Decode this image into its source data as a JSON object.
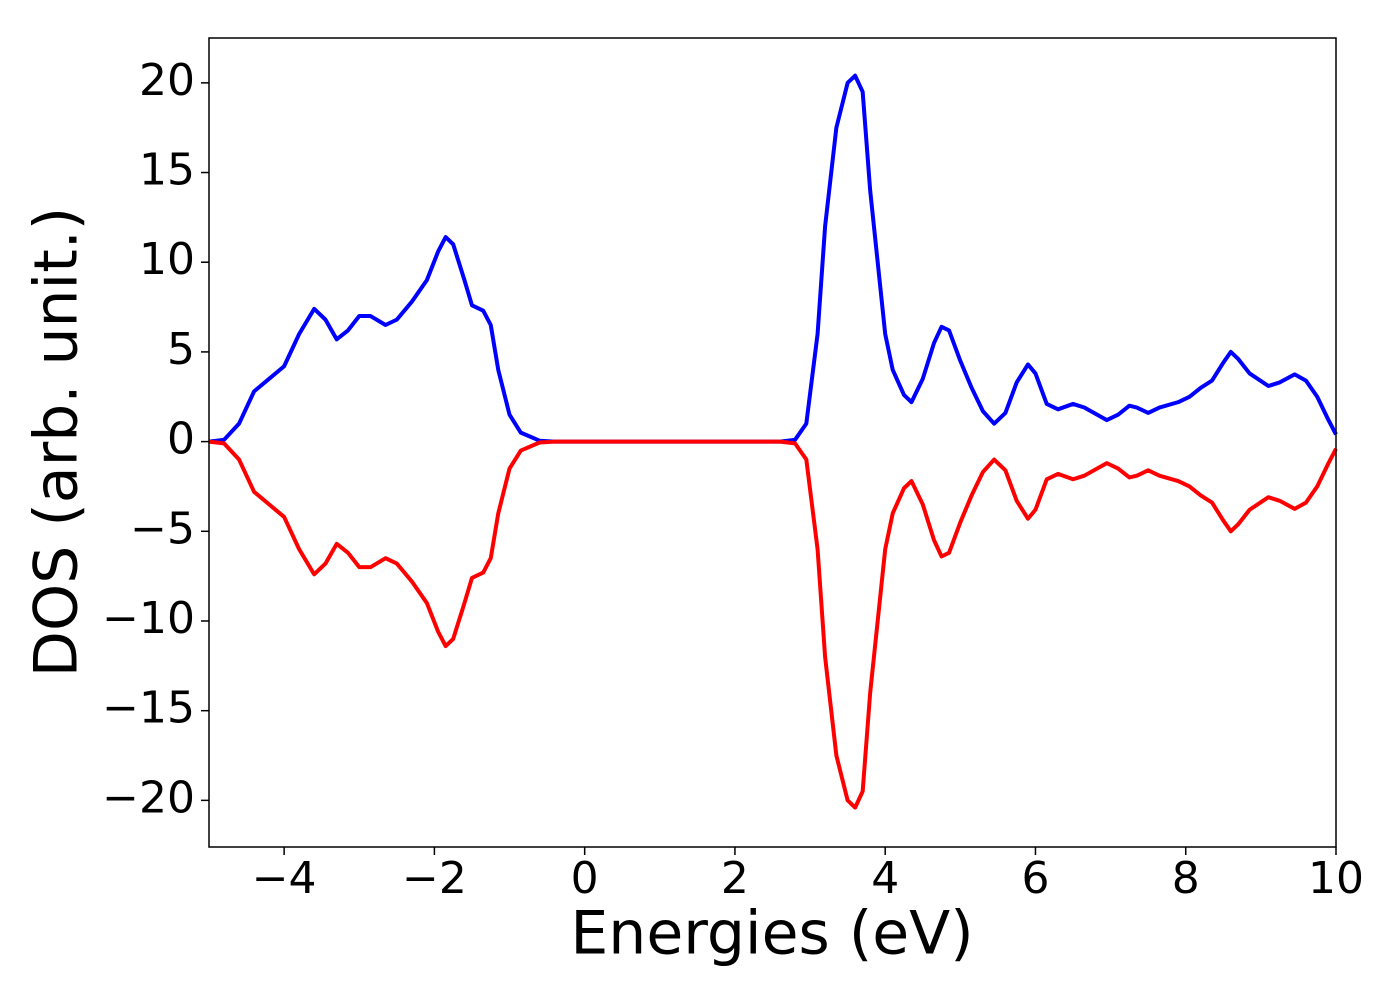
{
  "chart_data": {
    "type": "line",
    "xlabel": "Energies (eV)",
    "ylabel": "DOS (arb. unit.)",
    "x": [
      -5,
      -4.8,
      -4.6,
      -4.4,
      -4.2,
      -4.0,
      -3.8,
      -3.6,
      -3.45,
      -3.3,
      -3.15,
      -3.0,
      -2.85,
      -2.65,
      -2.5,
      -2.3,
      -2.1,
      -1.95,
      -1.85,
      -1.75,
      -1.6,
      -1.5,
      -1.35,
      -1.25,
      -1.15,
      -1.0,
      -0.85,
      -0.6,
      -0.4,
      2.6,
      2.8,
      2.95,
      3.1,
      3.2,
      3.35,
      3.5,
      3.6,
      3.7,
      3.8,
      3.9,
      4.0,
      4.1,
      4.25,
      4.35,
      4.5,
      4.65,
      4.75,
      4.85,
      5.0,
      5.15,
      5.3,
      5.45,
      5.6,
      5.75,
      5.9,
      6.0,
      6.15,
      6.3,
      6.5,
      6.65,
      6.95,
      7.1,
      7.25,
      7.35,
      7.5,
      7.65,
      7.9,
      8.05,
      8.2,
      8.35,
      8.5,
      8.6,
      8.7,
      8.85,
      9.1,
      9.25,
      9.45,
      9.6,
      9.75,
      9.9,
      10.0
    ],
    "series": [
      {
        "color": "#0000ff",
        "values": [
          0,
          0.1,
          1,
          2.8,
          3.5,
          4.2,
          6,
          7.4,
          6.8,
          5.7,
          6.2,
          7.0,
          7.0,
          6.5,
          6.8,
          7.8,
          9.0,
          10.6,
          11.4,
          11,
          9,
          7.6,
          7.3,
          6.5,
          4,
          1.5,
          0.5,
          0.05,
          0,
          0,
          0.1,
          1,
          6,
          12,
          17.5,
          20,
          20.4,
          19.5,
          14,
          10,
          6,
          4,
          2.6,
          2.2,
          3.5,
          5.5,
          6.4,
          6.2,
          4.5,
          3,
          1.7,
          1,
          1.6,
          3.3,
          4.3,
          3.8,
          2.1,
          1.8,
          2.1,
          1.9,
          1.2,
          1.5,
          2.0,
          1.9,
          1.6,
          1.9,
          2.2,
          2.5,
          3.0,
          3.4,
          4.4,
          5.0,
          4.6,
          3.8,
          3.1,
          3.3,
          3.75,
          3.4,
          2.5,
          1.2,
          0.4
        ]
      },
      {
        "color": "#ff0000",
        "values": [
          0,
          -0.1,
          -1,
          -2.8,
          -3.5,
          -4.2,
          -6,
          -7.4,
          -6.8,
          -5.7,
          -6.2,
          -7.0,
          -7.0,
          -6.5,
          -6.8,
          -7.8,
          -9.0,
          -10.6,
          -11.4,
          -11,
          -9,
          -7.6,
          -7.3,
          -6.5,
          -4,
          -1.5,
          -0.5,
          -0.05,
          0,
          0,
          -0.1,
          -1,
          -6,
          -12,
          -17.5,
          -20,
          -20.4,
          -19.5,
          -14,
          -10,
          -6,
          -4,
          -2.6,
          -2.2,
          -3.5,
          -5.5,
          -6.4,
          -6.2,
          -4.5,
          -3,
          -1.7,
          -1,
          -1.6,
          -3.3,
          -4.3,
          -3.8,
          -2.1,
          -1.8,
          -2.1,
          -1.9,
          -1.2,
          -1.5,
          -2.0,
          -1.9,
          -1.6,
          -1.9,
          -2.2,
          -2.5,
          -3.0,
          -3.4,
          -4.4,
          -5.0,
          -4.6,
          -3.8,
          -3.1,
          -3.3,
          -3.75,
          -3.4,
          -2.5,
          -1.2,
          -0.4
        ]
      }
    ],
    "xlim": [
      -5,
      10
    ],
    "ylim": [
      -22.6,
      22.5
    ],
    "xticks": [
      {
        "value": -4,
        "label": "−4"
      },
      {
        "value": -2,
        "label": "−2"
      },
      0,
      2,
      4,
      6,
      8,
      10
    ],
    "yticks": [
      {
        "value": -20,
        "label": "−20"
      },
      {
        "value": -15,
        "label": "−15"
      },
      {
        "value": -10,
        "label": "−10"
      },
      {
        "value": -5,
        "label": "−5"
      },
      0,
      5,
      10,
      15,
      20
    ]
  }
}
